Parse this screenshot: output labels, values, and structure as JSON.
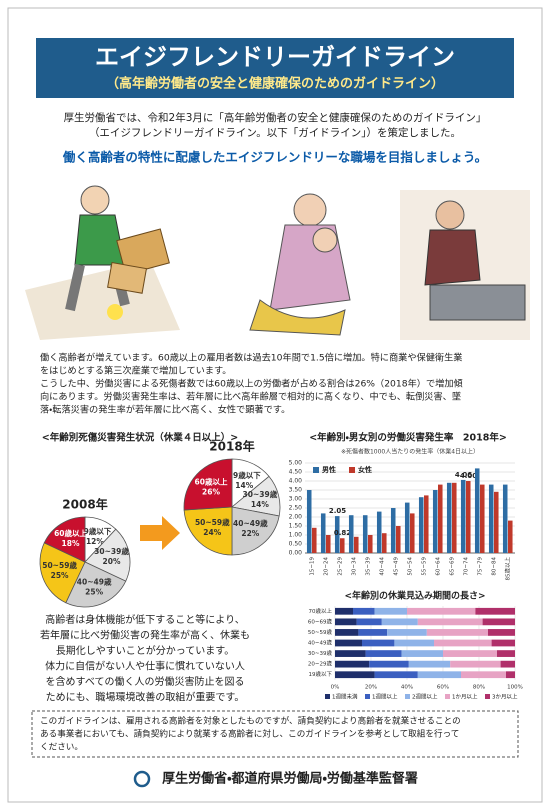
{
  "header": {
    "title": "エイジフレンドリーガイドライン",
    "subtitle": "（高年齢労働者の安全と健康確保のためのガイドライン）"
  },
  "intro": [
    "厚生労働省では、令和2年3月に「高年齢労働者の安全と健康確保のためのガイドライン」",
    "（エイジフレンドリーガイドライン。以下「ガイドライン」）を策定しました。"
  ],
  "slogan": "働く高齢者の特性に配慮したエイジフレンドリーな職場を目指しましょう。",
  "body": [
    "働く高齢者が増えています。60歳以上の雇用者数は過去10年間で1.5倍に増加。特に商業や保健衛生業",
    "をはじめとする第三次産業で増加しています。",
    "こうした中、労働災害による死傷者数では60歳以上の労働者が占める割合は26%（2018年）で増加傾",
    "向にあります。労働災害発生率は、若年層に比べ高年齢層で相対的に高くなり、中でも、転倒災害、墜",
    "落・転落災害の発生率が若年層に比べ高く、女性で顕著です。"
  ],
  "left_text": [
    "高齢者は身体機能が低下すること等により、",
    "若年層に比べ労働災害の発生率が高く、休業も",
    "長期化しやすいことが分かっています。",
    "体力に自信がない人や仕事に慣れていない人",
    "を含めすべての働く人の労働災害防止を図る",
    "ためにも、職場環境改善の取組が重要です。"
  ],
  "notice": [
    "このガイドラインは、雇用される高齢者を対象としたものですが、請負契約により高齢者を就業させることの",
    "ある事業者においても、請負契約により就業する高齢者に対し、このガイドラインを参考として取組を行って",
    "ください。"
  ],
  "footer": "厚生労働省・都道府県労働局・労働基準監督署",
  "chart_data": [
    {
      "type": "pie",
      "title": "<年齢別死傷災害発生状況（休業４日以上）>",
      "label": "2008年",
      "categories": [
        "29歳以下",
        "30~39歳",
        "40~49歳",
        "50~59歳",
        "60歳以上"
      ],
      "values": [
        12,
        20,
        25,
        25,
        18
      ],
      "value_labels": [
        "12%",
        "20%",
        "25%",
        "25%",
        "18%"
      ],
      "colors": [
        "#ffffff",
        "#e8e8e8",
        "#cfcfcf",
        "#f5c518",
        "#c8102e"
      ]
    },
    {
      "type": "pie",
      "label": "2018年",
      "categories": [
        "29歳以下",
        "30~39歳",
        "40~49歳",
        "50~59歳",
        "60歳以上"
      ],
      "values": [
        14,
        14,
        22,
        24,
        26
      ],
      "value_labels": [
        "14%",
        "14%",
        "22%",
        "24%",
        "26%"
      ],
      "colors": [
        "#ffffff",
        "#e8e8e8",
        "#cfcfcf",
        "#f5c518",
        "#c8102e"
      ]
    },
    {
      "type": "bar",
      "title": "<年齢別・男女別の労働災害発生率　2018年>",
      "subtitle": "※死傷者数1000人当たりの発生率（休業4日以上）",
      "categories": [
        "15~19",
        "20~24",
        "25~29",
        "30~34",
        "35~39",
        "40~44",
        "45~49",
        "50~54",
        "55~59",
        "60~64",
        "65~69",
        "70~74",
        "75~79",
        "80~84",
        "85歳以上"
      ],
      "series": [
        {
          "name": "男性",
          "color": "#2e6da4",
          "values": [
            3.5,
            2.2,
            2.05,
            2.1,
            2.1,
            2.3,
            2.5,
            2.8,
            3.1,
            3.5,
            3.9,
            4.06,
            4.7,
            3.8,
            3.8
          ],
          "value_labels": [
            null,
            null,
            "2.05",
            null,
            null,
            null,
            null,
            null,
            null,
            null,
            null,
            "4.06",
            null,
            null,
            null
          ]
        },
        {
          "name": "女性",
          "color": "#c0392b",
          "values": [
            1.4,
            1.0,
            0.82,
            0.9,
            1.0,
            1.1,
            1.5,
            2.2,
            3.2,
            3.8,
            3.9,
            4.0,
            3.8,
            3.4,
            1.8
          ],
          "value_labels": [
            null,
            null,
            "0.82",
            null,
            null,
            null,
            null,
            null,
            null,
            null,
            null,
            "4.00",
            null,
            null,
            null
          ]
        }
      ],
      "ylim": [
        0,
        5
      ],
      "yticks": [
        {
          "value": 0,
          "label": "0.00"
        },
        {
          "value": 0.5,
          "label": "0.50"
        },
        {
          "value": 1,
          "label": "1.00"
        },
        {
          "value": 1.5,
          "label": "1.50"
        },
        {
          "value": 2,
          "label": "2.00"
        },
        {
          "value": 2.5,
          "label": "2.50"
        },
        {
          "value": 3,
          "label": "3.00"
        },
        {
          "value": 3.5,
          "label": "3.50"
        },
        {
          "value": 4,
          "label": "4.00"
        },
        {
          "value": 4.5,
          "label": "4.50"
        },
        {
          "value": 5,
          "label": "5.00"
        }
      ],
      "grid": true
    },
    {
      "type": "stacked_bar",
      "title": "<年齢別の休業見込み期間の長さ>",
      "categories": [
        "70歳以上",
        "60~69歳",
        "50~59歳",
        "40~49歳",
        "30~39歳",
        "20~29歳",
        "19歳以下"
      ],
      "series": [
        {
          "name": "1週間未満",
          "color": "#1f2f6b",
          "values": [
            10,
            12,
            13,
            15,
            17,
            19,
            22
          ]
        },
        {
          "name": "1週間以上",
          "color": "#3b5fc0",
          "values": [
            12,
            14,
            16,
            18,
            20,
            22,
            24
          ]
        },
        {
          "name": "2週間以上",
          "color": "#8fb3e8",
          "values": [
            18,
            20,
            22,
            22,
            23,
            23,
            24
          ]
        },
        {
          "name": "1か月以上",
          "color": "#e7a3c4",
          "values": [
            38,
            36,
            34,
            32,
            30,
            28,
            25
          ]
        },
        {
          "name": "3か月以上",
          "color": "#b0306a",
          "values": [
            22,
            18,
            15,
            13,
            10,
            8,
            5
          ]
        }
      ],
      "xlim": [
        0,
        100
      ],
      "xticks": [
        {
          "value": 0,
          "label": "0%"
        },
        {
          "value": 20,
          "label": "20%"
        },
        {
          "value": 40,
          "label": "40%"
        },
        {
          "value": 60,
          "label": "60%"
        },
        {
          "value": 80,
          "label": "80%"
        },
        {
          "value": 100,
          "label": "100%"
        }
      ]
    }
  ]
}
